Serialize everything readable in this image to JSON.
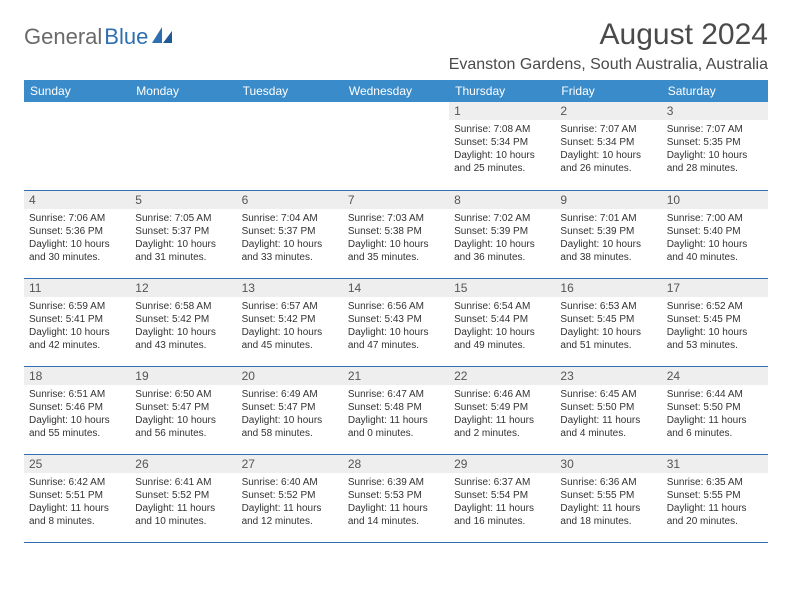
{
  "logo": {
    "part1": "General",
    "part2": "Blue"
  },
  "title": "August 2024",
  "location": "Evanston Gardens, South Australia, Australia",
  "colors": {
    "header_bg": "#3a8bc9",
    "header_text": "#ffffff",
    "daynum_bg": "#eeeeee",
    "rule": "#2f6fb0",
    "logo_gray": "#6a6a6a",
    "logo_blue": "#2f6fb0"
  },
  "weekdays": [
    "Sunday",
    "Monday",
    "Tuesday",
    "Wednesday",
    "Thursday",
    "Friday",
    "Saturday"
  ],
  "weeks": [
    [
      {
        "n": "",
        "sr": "",
        "ss": "",
        "dl": ""
      },
      {
        "n": "",
        "sr": "",
        "ss": "",
        "dl": ""
      },
      {
        "n": "",
        "sr": "",
        "ss": "",
        "dl": ""
      },
      {
        "n": "",
        "sr": "",
        "ss": "",
        "dl": ""
      },
      {
        "n": "1",
        "sr": "Sunrise: 7:08 AM",
        "ss": "Sunset: 5:34 PM",
        "dl": "Daylight: 10 hours and 25 minutes."
      },
      {
        "n": "2",
        "sr": "Sunrise: 7:07 AM",
        "ss": "Sunset: 5:34 PM",
        "dl": "Daylight: 10 hours and 26 minutes."
      },
      {
        "n": "3",
        "sr": "Sunrise: 7:07 AM",
        "ss": "Sunset: 5:35 PM",
        "dl": "Daylight: 10 hours and 28 minutes."
      }
    ],
    [
      {
        "n": "4",
        "sr": "Sunrise: 7:06 AM",
        "ss": "Sunset: 5:36 PM",
        "dl": "Daylight: 10 hours and 30 minutes."
      },
      {
        "n": "5",
        "sr": "Sunrise: 7:05 AM",
        "ss": "Sunset: 5:37 PM",
        "dl": "Daylight: 10 hours and 31 minutes."
      },
      {
        "n": "6",
        "sr": "Sunrise: 7:04 AM",
        "ss": "Sunset: 5:37 PM",
        "dl": "Daylight: 10 hours and 33 minutes."
      },
      {
        "n": "7",
        "sr": "Sunrise: 7:03 AM",
        "ss": "Sunset: 5:38 PM",
        "dl": "Daylight: 10 hours and 35 minutes."
      },
      {
        "n": "8",
        "sr": "Sunrise: 7:02 AM",
        "ss": "Sunset: 5:39 PM",
        "dl": "Daylight: 10 hours and 36 minutes."
      },
      {
        "n": "9",
        "sr": "Sunrise: 7:01 AM",
        "ss": "Sunset: 5:39 PM",
        "dl": "Daylight: 10 hours and 38 minutes."
      },
      {
        "n": "10",
        "sr": "Sunrise: 7:00 AM",
        "ss": "Sunset: 5:40 PM",
        "dl": "Daylight: 10 hours and 40 minutes."
      }
    ],
    [
      {
        "n": "11",
        "sr": "Sunrise: 6:59 AM",
        "ss": "Sunset: 5:41 PM",
        "dl": "Daylight: 10 hours and 42 minutes."
      },
      {
        "n": "12",
        "sr": "Sunrise: 6:58 AM",
        "ss": "Sunset: 5:42 PM",
        "dl": "Daylight: 10 hours and 43 minutes."
      },
      {
        "n": "13",
        "sr": "Sunrise: 6:57 AM",
        "ss": "Sunset: 5:42 PM",
        "dl": "Daylight: 10 hours and 45 minutes."
      },
      {
        "n": "14",
        "sr": "Sunrise: 6:56 AM",
        "ss": "Sunset: 5:43 PM",
        "dl": "Daylight: 10 hours and 47 minutes."
      },
      {
        "n": "15",
        "sr": "Sunrise: 6:54 AM",
        "ss": "Sunset: 5:44 PM",
        "dl": "Daylight: 10 hours and 49 minutes."
      },
      {
        "n": "16",
        "sr": "Sunrise: 6:53 AM",
        "ss": "Sunset: 5:45 PM",
        "dl": "Daylight: 10 hours and 51 minutes."
      },
      {
        "n": "17",
        "sr": "Sunrise: 6:52 AM",
        "ss": "Sunset: 5:45 PM",
        "dl": "Daylight: 10 hours and 53 minutes."
      }
    ],
    [
      {
        "n": "18",
        "sr": "Sunrise: 6:51 AM",
        "ss": "Sunset: 5:46 PM",
        "dl": "Daylight: 10 hours and 55 minutes."
      },
      {
        "n": "19",
        "sr": "Sunrise: 6:50 AM",
        "ss": "Sunset: 5:47 PM",
        "dl": "Daylight: 10 hours and 56 minutes."
      },
      {
        "n": "20",
        "sr": "Sunrise: 6:49 AM",
        "ss": "Sunset: 5:47 PM",
        "dl": "Daylight: 10 hours and 58 minutes."
      },
      {
        "n": "21",
        "sr": "Sunrise: 6:47 AM",
        "ss": "Sunset: 5:48 PM",
        "dl": "Daylight: 11 hours and 0 minutes."
      },
      {
        "n": "22",
        "sr": "Sunrise: 6:46 AM",
        "ss": "Sunset: 5:49 PM",
        "dl": "Daylight: 11 hours and 2 minutes."
      },
      {
        "n": "23",
        "sr": "Sunrise: 6:45 AM",
        "ss": "Sunset: 5:50 PM",
        "dl": "Daylight: 11 hours and 4 minutes."
      },
      {
        "n": "24",
        "sr": "Sunrise: 6:44 AM",
        "ss": "Sunset: 5:50 PM",
        "dl": "Daylight: 11 hours and 6 minutes."
      }
    ],
    [
      {
        "n": "25",
        "sr": "Sunrise: 6:42 AM",
        "ss": "Sunset: 5:51 PM",
        "dl": "Daylight: 11 hours and 8 minutes."
      },
      {
        "n": "26",
        "sr": "Sunrise: 6:41 AM",
        "ss": "Sunset: 5:52 PM",
        "dl": "Daylight: 11 hours and 10 minutes."
      },
      {
        "n": "27",
        "sr": "Sunrise: 6:40 AM",
        "ss": "Sunset: 5:52 PM",
        "dl": "Daylight: 11 hours and 12 minutes."
      },
      {
        "n": "28",
        "sr": "Sunrise: 6:39 AM",
        "ss": "Sunset: 5:53 PM",
        "dl": "Daylight: 11 hours and 14 minutes."
      },
      {
        "n": "29",
        "sr": "Sunrise: 6:37 AM",
        "ss": "Sunset: 5:54 PM",
        "dl": "Daylight: 11 hours and 16 minutes."
      },
      {
        "n": "30",
        "sr": "Sunrise: 6:36 AM",
        "ss": "Sunset: 5:55 PM",
        "dl": "Daylight: 11 hours and 18 minutes."
      },
      {
        "n": "31",
        "sr": "Sunrise: 6:35 AM",
        "ss": "Sunset: 5:55 PM",
        "dl": "Daylight: 11 hours and 20 minutes."
      }
    ]
  ]
}
